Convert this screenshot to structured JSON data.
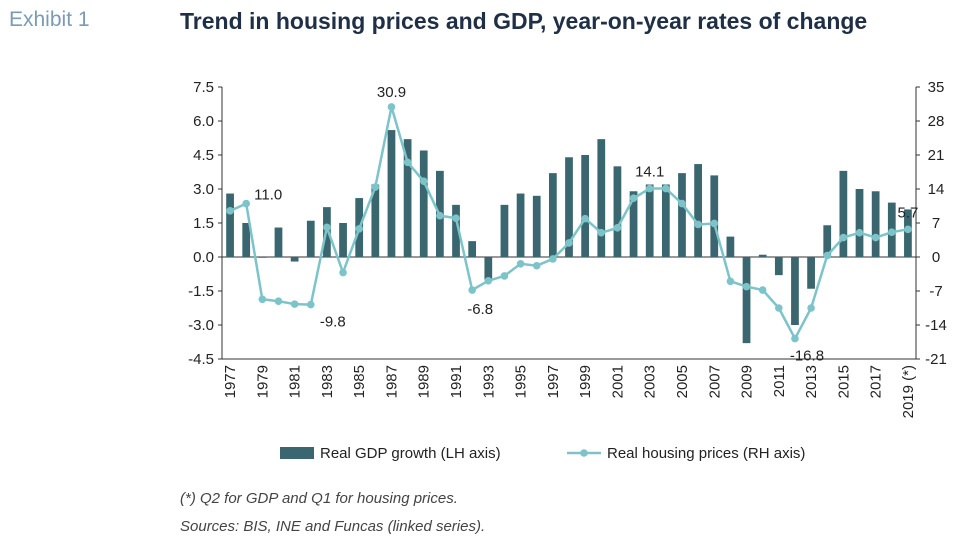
{
  "exhibit_label": "Exhibit 1",
  "title": "Trend in housing prices and GDP, year-on-year rates of change",
  "notes": {
    "footnote": "(*) Q2 for GDP and Q1 for housing prices.",
    "sources": "Sources: BIS, INE and Funcas (linked series)."
  },
  "colors": {
    "bars": "#3a6670",
    "line": "#7cc4c9",
    "axis": "#333333"
  },
  "chart_data": {
    "type": "bar+line",
    "categories": [
      "1977",
      "1978",
      "1979",
      "1980",
      "1981",
      "1982",
      "1983",
      "1984",
      "1985",
      "1986",
      "1987",
      "1988",
      "1989",
      "1990",
      "1991",
      "1992",
      "1993",
      "1994",
      "1995",
      "1996",
      "1997",
      "1998",
      "1999",
      "2000",
      "2001",
      "2002",
      "2003",
      "2004",
      "2005",
      "2006",
      "2007",
      "2008",
      "2009",
      "2010",
      "2011",
      "2012",
      "2013",
      "2014",
      "2015",
      "2016",
      "2017",
      "2018",
      "2019 (*)"
    ],
    "x_tick_labels": [
      "1977",
      "",
      "1979",
      "",
      "1981",
      "",
      "1983",
      "",
      "1985",
      "",
      "1987",
      "",
      "1989",
      "",
      "1991",
      "",
      "1993",
      "",
      "1995",
      "",
      "1997",
      "",
      "1999",
      "",
      "2001",
      "",
      "2003",
      "",
      "2005",
      "",
      "2007",
      "",
      "2009",
      "",
      "2011",
      "",
      "2013",
      "",
      "2015",
      "",
      "2017",
      "",
      "2019 (*)"
    ],
    "series": [
      {
        "name": "Real GDP growth (LH axis)",
        "axis": "left",
        "kind": "bar",
        "values": [
          2.8,
          1.5,
          0.0,
          1.3,
          -0.2,
          1.6,
          2.2,
          1.5,
          2.6,
          3.2,
          5.6,
          5.2,
          4.7,
          3.8,
          2.3,
          0.7,
          -1.0,
          2.3,
          2.8,
          2.7,
          3.7,
          4.4,
          4.5,
          5.2,
          4.0,
          2.9,
          3.2,
          3.2,
          3.7,
          4.1,
          3.6,
          0.9,
          -3.8,
          0.1,
          -0.8,
          -3.0,
          -1.4,
          1.4,
          3.8,
          3.0,
          2.9,
          2.4,
          2.1
        ]
      },
      {
        "name": "Real housing prices (RH axis)",
        "axis": "right",
        "kind": "line",
        "values": [
          9.5,
          11.0,
          -8.7,
          -9.1,
          -9.7,
          -9.8,
          6.1,
          -3.2,
          5.8,
          14.4,
          30.9,
          19.5,
          15.6,
          8.5,
          8.0,
          -6.8,
          -4.9,
          -3.9,
          -1.4,
          -1.8,
          -0.4,
          2.9,
          7.9,
          5.0,
          6.0,
          12.1,
          14.1,
          14.1,
          11.0,
          6.7,
          6.9,
          -5.0,
          -6.1,
          -6.8,
          -10.5,
          -16.8,
          -10.5,
          0.3,
          4.0,
          5.0,
          4.0,
          5.1,
          5.7
        ]
      }
    ],
    "data_labels": [
      {
        "series": 1,
        "index": 1,
        "text": "11.0"
      },
      {
        "series": 1,
        "index": 5,
        "text": "-9.8"
      },
      {
        "series": 1,
        "index": 10,
        "text": "30.9"
      },
      {
        "series": 1,
        "index": 15,
        "text": "-6.8"
      },
      {
        "series": 1,
        "index": 26,
        "text": "14.1"
      },
      {
        "series": 1,
        "index": 35,
        "text": "-16.8"
      },
      {
        "series": 1,
        "index": 42,
        "text": "5.7"
      }
    ],
    "left_axis": {
      "min": -4.5,
      "max": 7.5,
      "ticks": [
        "7.5",
        "6.0",
        "4.5",
        "3.0",
        "1.5",
        "0.0",
        "-1.5",
        "-3.0",
        "-4.5"
      ],
      "tick_values": [
        7.5,
        6.0,
        4.5,
        3.0,
        1.5,
        0.0,
        -1.5,
        -3.0,
        -4.5
      ]
    },
    "right_axis": {
      "min": -21,
      "max": 35,
      "ticks": [
        "35",
        "28",
        "21",
        "14",
        "7",
        "0",
        "-7",
        "-14",
        "-21"
      ],
      "tick_values": [
        35,
        28,
        21,
        14,
        7,
        0,
        -7,
        -14,
        -21
      ]
    },
    "legend_position": "bottom",
    "grid": false
  }
}
